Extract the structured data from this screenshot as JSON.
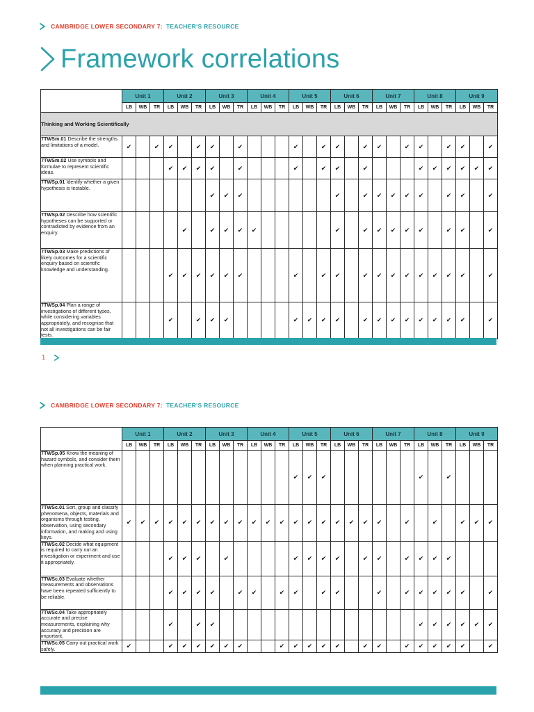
{
  "brand": {
    "eyebrow_red": "CAMBRIDGE LOWER SECONDARY 7:",
    "eyebrow_teal": "TEACHER'S RESOURCE"
  },
  "title": "Framework correlations",
  "footer": {
    "page_number": "1"
  },
  "colors": {
    "teal": "#2AA2AC",
    "teal_light": "#5AB6BD",
    "red": "#E23C2B",
    "section_grey": "#D8D8D8"
  },
  "table": {
    "units": [
      "Unit 1",
      "Unit 2",
      "Unit 3",
      "Unit 4",
      "Unit 5",
      "Unit 6",
      "Unit 7",
      "Unit 8",
      "Unit 9"
    ],
    "subcols": [
      "LB",
      "WB",
      "TR"
    ],
    "check_glyph": "✔"
  },
  "page1": {
    "section": "Thinking and Working Scientifically",
    "rows": [
      {
        "code": "7TWSm.01",
        "text": "Describe the strengths and limitations of a model.",
        "checks": [
          1,
          0,
          1,
          1,
          0,
          1,
          1,
          0,
          1,
          0,
          0,
          0,
          1,
          0,
          1,
          1,
          0,
          1,
          1,
          0,
          1,
          1,
          0,
          1,
          1,
          0,
          1
        ]
      },
      {
        "code": "7TWSm.02",
        "text": "Use symbols and formulae to represent scientific ideas.",
        "checks": [
          0,
          0,
          0,
          1,
          1,
          1,
          1,
          0,
          1,
          0,
          0,
          0,
          1,
          0,
          1,
          1,
          0,
          1,
          0,
          0,
          0,
          1,
          1,
          1,
          1,
          1,
          1
        ]
      },
      {
        "code": "7TWSp.01",
        "text": "Identify whether a given hypothesis is testable.",
        "checks": [
          0,
          0,
          0,
          0,
          0,
          0,
          1,
          1,
          1,
          0,
          0,
          0,
          0,
          0,
          0,
          1,
          0,
          1,
          1,
          1,
          1,
          1,
          0,
          1,
          1,
          0,
          1
        ]
      },
      {
        "code": "7TWSp.02",
        "text": "Describe how scientific hypotheses can be supported or contradicted by evidence from an enquiry.",
        "checks": [
          0,
          0,
          0,
          0,
          1,
          0,
          1,
          1,
          1,
          1,
          0,
          0,
          0,
          0,
          0,
          1,
          0,
          1,
          1,
          1,
          1,
          1,
          0,
          1,
          1,
          0,
          1
        ]
      },
      {
        "code": "7TWSp.03",
        "text": "Make predictions of likely outcomes for a scientific enquiry based on scientific knowledge and understanding.",
        "checks": [
          0,
          0,
          0,
          1,
          1,
          1,
          1,
          1,
          1,
          0,
          0,
          0,
          1,
          0,
          1,
          1,
          0,
          1,
          1,
          1,
          1,
          1,
          1,
          1,
          1,
          0,
          1
        ]
      },
      {
        "code": "7TWSp.04",
        "text": "Plan a range of investigations of different types, while considering variables appropriately, and recognise that not all investigations can be fair tests.",
        "checks": [
          0,
          0,
          0,
          1,
          0,
          1,
          1,
          1,
          0,
          0,
          0,
          0,
          1,
          1,
          1,
          1,
          0,
          1,
          1,
          1,
          1,
          1,
          1,
          1,
          1,
          0,
          1
        ]
      }
    ]
  },
  "page2": {
    "rows": [
      {
        "code": "7TWSp.05",
        "text": "Know the meaning of hazard symbols, and consider them when planning practical work.",
        "checks": [
          0,
          0,
          0,
          0,
          0,
          0,
          0,
          0,
          0,
          0,
          0,
          0,
          1,
          1,
          1,
          0,
          0,
          0,
          0,
          0,
          0,
          1,
          0,
          1,
          0,
          0,
          0
        ]
      },
      {
        "code": "7TWSc.01",
        "text": "Sort, group and classify phenomena, objects, materials and organisms through testing, observation, using secondary information, and making and using keys.",
        "checks": [
          1,
          1,
          1,
          1,
          1,
          1,
          1,
          1,
          1,
          1,
          1,
          1,
          1,
          1,
          1,
          1,
          1,
          1,
          1,
          0,
          1,
          0,
          1,
          0,
          1,
          1,
          1
        ]
      },
      {
        "code": "7TWSc.02",
        "text": "Decide what equipment is required to carry out an investigation or experiment and use it appropriately.",
        "checks": [
          0,
          0,
          0,
          1,
          1,
          1,
          0,
          1,
          0,
          0,
          0,
          0,
          1,
          1,
          1,
          1,
          0,
          1,
          1,
          0,
          1,
          1,
          1,
          1,
          0,
          0,
          0
        ]
      },
      {
        "code": "7TWSc.03",
        "text": "Evaluate whether measurements and observations have been repeated sufficiently to be reliable.",
        "checks": [
          0,
          0,
          0,
          1,
          1,
          1,
          1,
          0,
          1,
          1,
          0,
          1,
          1,
          0,
          1,
          1,
          0,
          0,
          1,
          0,
          1,
          1,
          1,
          1,
          1,
          0,
          1
        ]
      },
      {
        "code": "7TWSc.04",
        "text": "Take appropriately accurate and precise measurements, explaining why accuracy and precision are important.",
        "checks": [
          0,
          0,
          0,
          1,
          0,
          1,
          1,
          0,
          0,
          0,
          0,
          0,
          0,
          0,
          0,
          0,
          0,
          0,
          0,
          0,
          0,
          1,
          1,
          1,
          1,
          1,
          1
        ]
      },
      {
        "code": "7TWSc.05",
        "text": "Carry out practical work safely.",
        "checks": [
          1,
          0,
          0,
          1,
          1,
          1,
          1,
          1,
          1,
          0,
          0,
          1,
          1,
          1,
          1,
          1,
          0,
          1,
          1,
          0,
          1,
          1,
          1,
          1,
          1,
          0,
          1
        ]
      }
    ]
  }
}
